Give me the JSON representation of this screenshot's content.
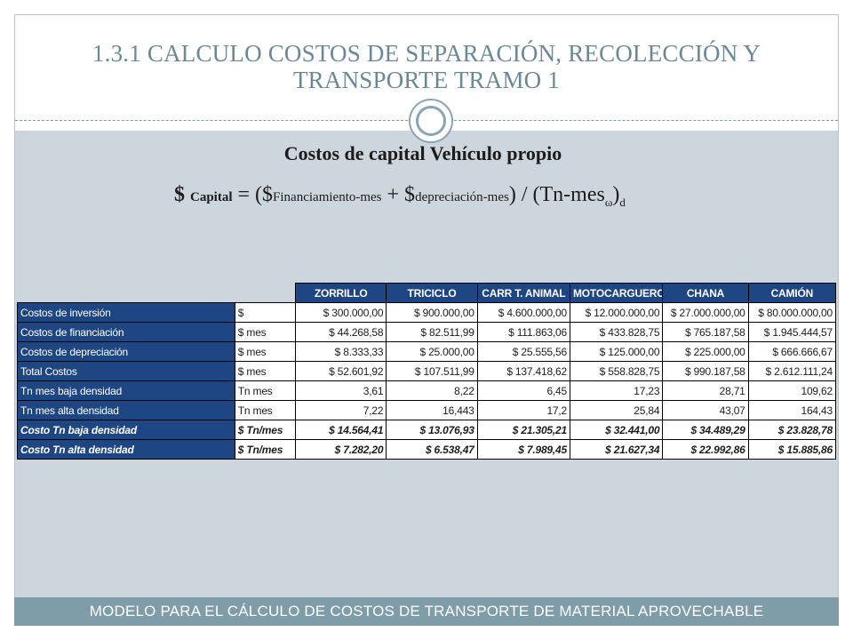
{
  "slide": {
    "title_line1": "1.3.1 CALCULO COSTOS DE SEPARACIÓN, RECOLECCIÓN Y",
    "title_line2": "TRANSPORTE TRAMO 1",
    "subtitle": "Costos de capital Vehículo propio",
    "formula": {
      "dollar1": "$",
      "capital": "Capital",
      "eq_open": "= ($",
      "financ": "Financiamiento-mes",
      "plus": " + $",
      "deprec": "depreciación-mes",
      "close": ") / (Tn-mes",
      "omega": "ω",
      "paren": ")",
      "d": "d"
    },
    "footer": "MODELO PARA EL CÁLCULO DE COSTOS DE TRANSPORTE DE MATERIAL APROVECHABLE"
  },
  "table": {
    "headers": [
      "ZORRILLO",
      "TRICICLO",
      "CARR T. ANIMAL",
      "MOTOCARGUERO",
      "CHANA",
      "CAMIÓN"
    ],
    "rows": [
      {
        "label": "Costos de inversión",
        "unit": "$",
        "values": [
          "$ 300.000,00",
          "$ 900.000,00",
          "$ 4.600.000,00",
          "$ 12.000.000,00",
          "$ 27.000.000,00",
          "$ 80.000.000,00"
        ]
      },
      {
        "label": "Costos de financiación",
        "unit": "$ mes",
        "values": [
          "$ 44.268,58",
          "$ 82.511,99",
          "$ 111.863,06",
          "$ 433.828,75",
          "$ 765.187,58",
          "$ 1.945.444,57"
        ]
      },
      {
        "label": "Costos de depreciación",
        "unit": "$ mes",
        "values": [
          "$ 8.333,33",
          "$ 25.000,00",
          "$ 25.555,56",
          "$ 125.000,00",
          "$ 225.000,00",
          "$ 666.666,67"
        ]
      },
      {
        "label": "Total Costos",
        "unit": "$ mes",
        "values": [
          "$ 52.601,92",
          "$ 107.511,99",
          "$ 137.418,62",
          "$ 558.828,75",
          "$ 990.187,58",
          "$ 2.612.111,24"
        ]
      },
      {
        "label": "Tn mes baja densidad",
        "unit": "Tn mes",
        "values": [
          "3,61",
          "8,22",
          "6,45",
          "17,23",
          "28,71",
          "109,62"
        ]
      },
      {
        "label": "Tn mes alta densidad",
        "unit": "Tn mes",
        "values": [
          "7,22",
          "16,443",
          "17,2",
          "25,84",
          "43,07",
          "164,43"
        ]
      },
      {
        "label": "Costo Tn baja densidad",
        "unit": "$ Tn/mes",
        "values": [
          "$ 14.564,41",
          "$ 13.076,93",
          "$ 21.305,21",
          "$ 32.441,00",
          "$ 34.489,29",
          "$ 23.828,78"
        ]
      },
      {
        "label": "Costo Tn alta densidad",
        "unit": "$ Tn/mes",
        "values": [
          "$ 7.282,20",
          "$ 6.538,47",
          "$ 7.989,45",
          "$ 21.627,34",
          "$ 22.992,86",
          "$ 15.885,86"
        ]
      }
    ]
  },
  "colors": {
    "header_blue": "#1e4682",
    "content_bg": "#cdd6dc",
    "title_text": "#6b8896",
    "footer_bg": "#7e9da9"
  }
}
